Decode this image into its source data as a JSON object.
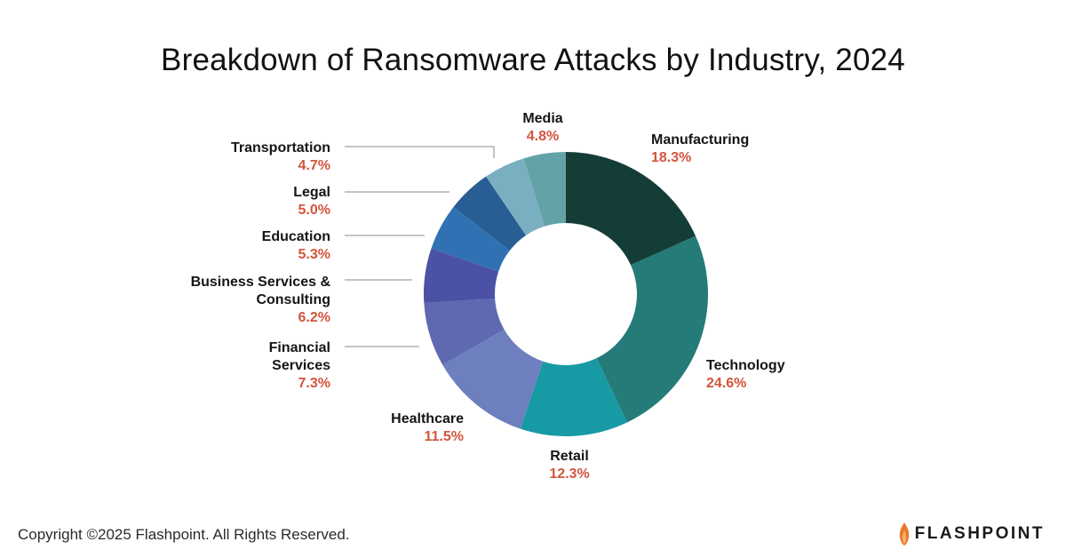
{
  "title": "Breakdown of Ransomware Attacks by Industry, 2024",
  "footer": {
    "copyright": "Copyright ©2025 Flashpoint. All Rights Reserved.",
    "brand": "FLASHPOINT",
    "brand_icon": "flame-icon"
  },
  "colors": {
    "value_label": "#d2553d",
    "leader_line": "#8a8a8a",
    "brand_flame": "#e8792f"
  },
  "chart_data": {
    "type": "pie",
    "variant": "donut",
    "title": "Breakdown of Ransomware Attacks by Industry, 2024",
    "legend": "none (slice labels)",
    "slices": [
      {
        "label": "Manufacturing",
        "lines": [
          "Manufacturing"
        ],
        "value": 18.3,
        "value_label": "18.3%",
        "color": "#153d38"
      },
      {
        "label": "Technology",
        "lines": [
          "Technology"
        ],
        "value": 24.6,
        "value_label": "24.6%",
        "color": "#247b77"
      },
      {
        "label": "Retail",
        "lines": [
          "Retail"
        ],
        "value": 12.3,
        "value_label": "12.3%",
        "color": "#189aa5"
      },
      {
        "label": "Healthcare",
        "lines": [
          "Healthcare"
        ],
        "value": 11.5,
        "value_label": "11.5%",
        "color": "#6e7fbf"
      },
      {
        "label": "Financial Services",
        "lines": [
          "Financial",
          "Services"
        ],
        "value": 7.3,
        "value_label": "7.3%",
        "color": "#5e69b1"
      },
      {
        "label": "Business Services & Consulting",
        "lines": [
          "Business Services &",
          "Consulting"
        ],
        "value": 6.2,
        "value_label": "6.2%",
        "color": "#4b52a5"
      },
      {
        "label": "Education",
        "lines": [
          "Education"
        ],
        "value": 5.3,
        "value_label": "5.3%",
        "color": "#2f71b2"
      },
      {
        "label": "Legal",
        "lines": [
          "Legal"
        ],
        "value": 5.0,
        "value_label": "5.0%",
        "color": "#285e94"
      },
      {
        "label": "Transportation",
        "lines": [
          "Transportation"
        ],
        "value": 4.7,
        "value_label": "4.7%",
        "color": "#7aafc1"
      },
      {
        "label": "Media",
        "lines": [
          "Media"
        ],
        "value": 4.8,
        "value_label": "4.8%",
        "color": "#63a3a7"
      }
    ]
  }
}
